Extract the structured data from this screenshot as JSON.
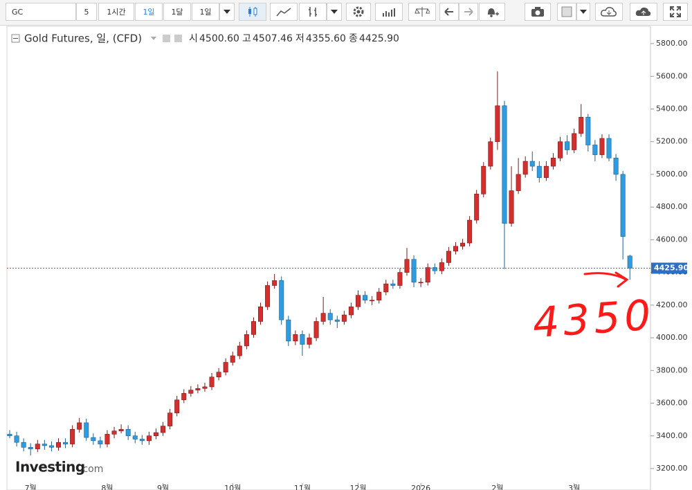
{
  "toolbar": {
    "symbol": "GC",
    "count": "5",
    "intervals": [
      "1시간",
      "1일",
      "1달"
    ],
    "range": "1일"
  },
  "header": {
    "items": [
      {
        "label": "시",
        "value": "4500.60"
      },
      {
        "label": "고",
        "value": "4507.46"
      },
      {
        "label": "저",
        "value": "4355.60"
      },
      {
        "label": "종",
        "value": "4425.90"
      }
    ]
  },
  "logo": {
    "brand": "Investing",
    "suffix": ".com"
  },
  "chart_data": {
    "type": "candlestick",
    "title": "Gold Futures, 일, (CFD)",
    "categories": [
      null,
      null,
      null,
      "7월",
      null,
      null,
      null,
      null,
      null,
      null,
      null,
      null,
      null,
      null,
      "8월",
      null,
      null,
      null,
      null,
      null,
      null,
      null,
      "9월",
      null,
      null,
      null,
      null,
      null,
      null,
      null,
      null,
      null,
      "10월",
      null,
      null,
      null,
      null,
      null,
      null,
      null,
      null,
      null,
      "11월",
      null,
      null,
      null,
      null,
      null,
      null,
      null,
      "12월",
      null,
      null,
      null,
      null,
      null,
      null,
      null,
      null,
      "2026",
      null,
      null,
      null,
      null,
      null,
      null,
      null,
      null,
      null,
      null,
      "2월",
      null,
      null,
      null,
      null,
      null,
      null,
      null,
      null,
      null,
      null,
      "3월",
      null,
      null,
      null,
      null,
      null,
      null,
      null,
      null
    ],
    "open": [
      3410,
      3400,
      3360,
      3330,
      3320,
      3350,
      3340,
      3330,
      3360,
      3350,
      3440,
      3480,
      3390,
      3370,
      3350,
      3410,
      3430,
      3440,
      3400,
      3380,
      3370,
      3400,
      3420,
      3460,
      3540,
      3620,
      3660,
      3680,
      3690,
      3700,
      3760,
      3790,
      3850,
      3890,
      3950,
      4020,
      4100,
      4190,
      4320,
      4350,
      4110,
      3980,
      4020,
      3960,
      4000,
      4100,
      4150,
      4110,
      4100,
      4140,
      4190,
      4260,
      4230,
      4230,
      4280,
      4330,
      4320,
      4400,
      4480,
      4340,
      4340,
      4430,
      4410,
      4460,
      4530,
      4560,
      4580,
      4720,
      4880,
      5050,
      5200,
      5420,
      4700,
      4900,
      5000,
      5080,
      5050,
      4980,
      5050,
      5100,
      5200,
      5150,
      5250,
      5350,
      5180,
      5120,
      5220,
      5100,
      5000,
      4500.6
    ],
    "high": [
      3435,
      3425,
      3385,
      3355,
      3375,
      3375,
      3365,
      3385,
      3385,
      3465,
      3510,
      3505,
      3415,
      3395,
      3435,
      3455,
      3470,
      3465,
      3425,
      3405,
      3425,
      3445,
      3485,
      3565,
      3645,
      3685,
      3705,
      3715,
      3725,
      3785,
      3815,
      3875,
      3915,
      3975,
      4045,
      4125,
      4215,
      4345,
      4390,
      4375,
      4135,
      4045,
      4045,
      4025,
      4125,
      4250,
      4175,
      4135,
      4165,
      4215,
      4290,
      4285,
      4255,
      4305,
      4355,
      4355,
      4425,
      4550,
      4505,
      4365,
      4455,
      4455,
      4485,
      4555,
      4585,
      4605,
      4745,
      4905,
      5075,
      5225,
      5630,
      5450,
      5050,
      5100,
      5110,
      5140,
      5080,
      5080,
      5130,
      5230,
      5240,
      5280,
      5430,
      5370,
      5210,
      5245,
      5245,
      5125,
      5020,
      4507.46
    ],
    "low": [
      3385,
      3335,
      3305,
      3280,
      3300,
      3315,
      3305,
      3310,
      3325,
      3330,
      3420,
      3370,
      3345,
      3325,
      3330,
      3385,
      3415,
      3375,
      3355,
      3345,
      3345,
      3380,
      3400,
      3440,
      3520,
      3600,
      3640,
      3660,
      3670,
      3680,
      3740,
      3770,
      3830,
      3870,
      3930,
      4000,
      4080,
      4170,
      4300,
      4080,
      3950,
      3955,
      3890,
      3935,
      3980,
      4080,
      4080,
      4060,
      4080,
      4120,
      4170,
      4210,
      4200,
      4210,
      4260,
      4300,
      4300,
      4380,
      4310,
      4310,
      4320,
      4390,
      4390,
      4440,
      4510,
      4540,
      4560,
      4700,
      4860,
      5030,
      5150,
      4420,
      4680,
      4880,
      4980,
      5020,
      4950,
      4960,
      5030,
      5080,
      5120,
      5130,
      5230,
      5140,
      5080,
      5100,
      5080,
      4960,
      4480,
      4355.6
    ],
    "close": [
      3400,
      3360,
      3330,
      3320,
      3350,
      3340,
      3330,
      3360,
      3350,
      3440,
      3480,
      3390,
      3370,
      3350,
      3410,
      3430,
      3440,
      3400,
      3380,
      3370,
      3400,
      3420,
      3460,
      3540,
      3620,
      3660,
      3680,
      3690,
      3700,
      3760,
      3790,
      3850,
      3890,
      3950,
      4020,
      4100,
      4190,
      4320,
      4350,
      4110,
      3980,
      4020,
      3960,
      4000,
      4100,
      4150,
      4110,
      4100,
      4140,
      4190,
      4260,
      4230,
      4230,
      4280,
      4330,
      4320,
      4400,
      4480,
      4340,
      4340,
      4430,
      4410,
      4460,
      4530,
      4560,
      4580,
      4720,
      4880,
      5050,
      5200,
      5420,
      4700,
      4900,
      5000,
      5080,
      5050,
      4980,
      5050,
      5100,
      5200,
      5150,
      5250,
      5350,
      5180,
      5120,
      5220,
      5100,
      5000,
      4620,
      4425.9
    ],
    "up_color": "#d32f2f",
    "down_color": "#2f9be0",
    "ylim": [
      3111,
      5906
    ],
    "yticks": [
      {
        "value": 3200,
        "label": "3200.00"
      },
      {
        "value": 3400,
        "label": "3400.00"
      },
      {
        "value": 3600,
        "label": "3600.00"
      },
      {
        "value": 3800,
        "label": "3800.00"
      },
      {
        "value": 4000,
        "label": "4000.00"
      },
      {
        "value": 4200,
        "label": "4200.00"
      },
      {
        "value": 4400,
        "label": "4400.00"
      },
      {
        "value": 4600,
        "label": "4600.00"
      },
      {
        "value": 4800,
        "label": "4800.00"
      },
      {
        "value": 5000,
        "label": "5000.00"
      },
      {
        "value": 5200,
        "label": "5200.00"
      },
      {
        "value": 5400,
        "label": "5400.00"
      },
      {
        "value": 5600,
        "label": "5600.00"
      },
      {
        "value": 5800,
        "label": "5800.00"
      }
    ],
    "last_price": {
      "value": 4425.9,
      "label": "4425.90"
    },
    "annotation": "4350",
    "annotation_color": "#ff1a1a"
  }
}
